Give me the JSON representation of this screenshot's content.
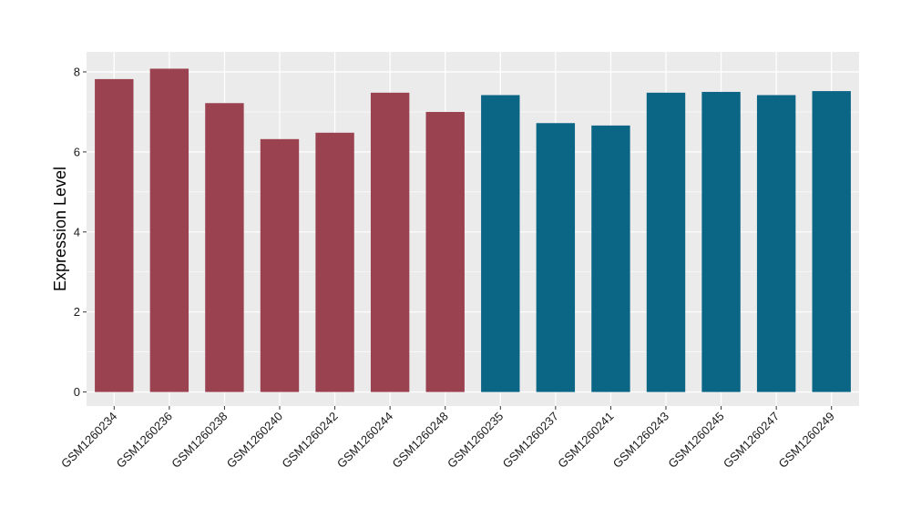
{
  "chart_data": {
    "type": "bar",
    "title": "",
    "xlabel": "",
    "ylabel": "Expression Level",
    "ylim": [
      -0.35,
      8.5
    ],
    "yticks": [
      0,
      2,
      4,
      6,
      8
    ],
    "grid": true,
    "legend": "none",
    "categories": [
      "GSM1260234",
      "GSM1260236",
      "GSM1260238",
      "GSM1260240",
      "GSM1260242",
      "GSM1260244",
      "GSM1260248",
      "GSM1260235",
      "GSM1260237",
      "GSM1260241",
      "GSM1260243",
      "GSM1260245",
      "GSM1260247",
      "GSM1260249"
    ],
    "values": [
      7.82,
      8.08,
      7.22,
      6.32,
      6.48,
      7.48,
      7.0,
      7.42,
      6.72,
      6.66,
      7.48,
      7.5,
      7.42,
      7.52
    ],
    "bar_colors": [
      "#9b4250",
      "#9b4250",
      "#9b4250",
      "#9b4250",
      "#9b4250",
      "#9b4250",
      "#9b4250",
      "#0b6585",
      "#0b6585",
      "#0b6585",
      "#0b6585",
      "#0b6585",
      "#0b6585",
      "#0b6585"
    ],
    "panel_background": "#ebebeb",
    "grid_color": "#ffffff"
  }
}
